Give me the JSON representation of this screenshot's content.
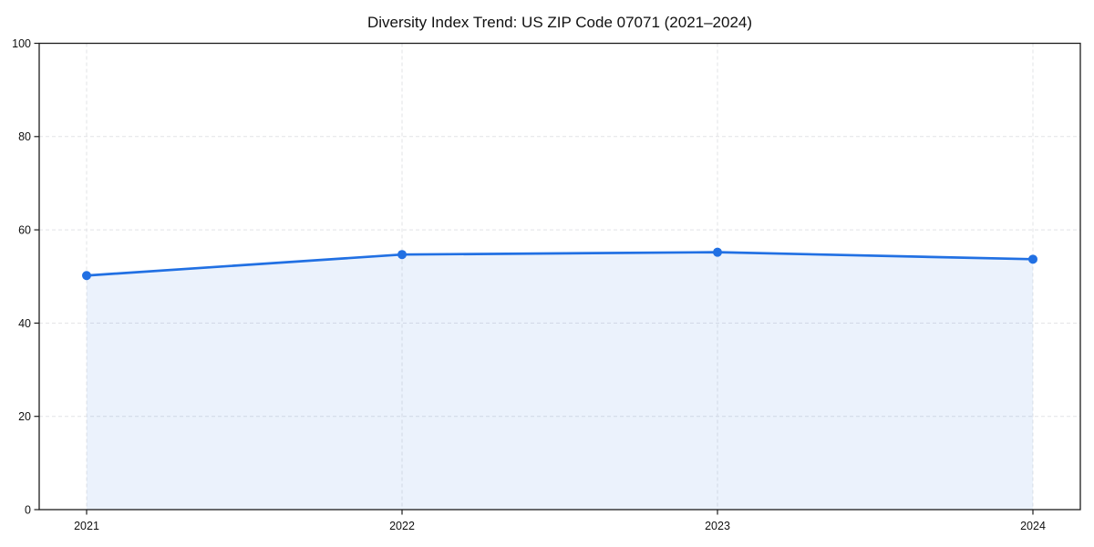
{
  "title": "Diversity Index Trend: US ZIP Code 07071 (2021–2024)",
  "chart_data": {
    "type": "area",
    "title": "Diversity Index Trend: US ZIP Code 07071 (2021–2024)",
    "x": [
      "2021",
      "2022",
      "2023",
      "2024"
    ],
    "series": [
      {
        "name": "Diversity Index",
        "values": [
          50.2,
          54.7,
          55.2,
          53.7
        ]
      }
    ],
    "xlabel": "",
    "ylabel": "",
    "ylim": [
      0,
      100
    ],
    "yticks": [
      0,
      20,
      40,
      60,
      80,
      100
    ],
    "grid": true,
    "grid_style": "dashed",
    "legend": "none",
    "marker": "circle",
    "colors": {
      "line": "#2170e3",
      "fill": "#2170e3",
      "fill_opacity": 0.09,
      "grid": "#e2e3e6",
      "axis": "#1c1c1c",
      "text": "#111111",
      "background": "#ffffff"
    }
  }
}
